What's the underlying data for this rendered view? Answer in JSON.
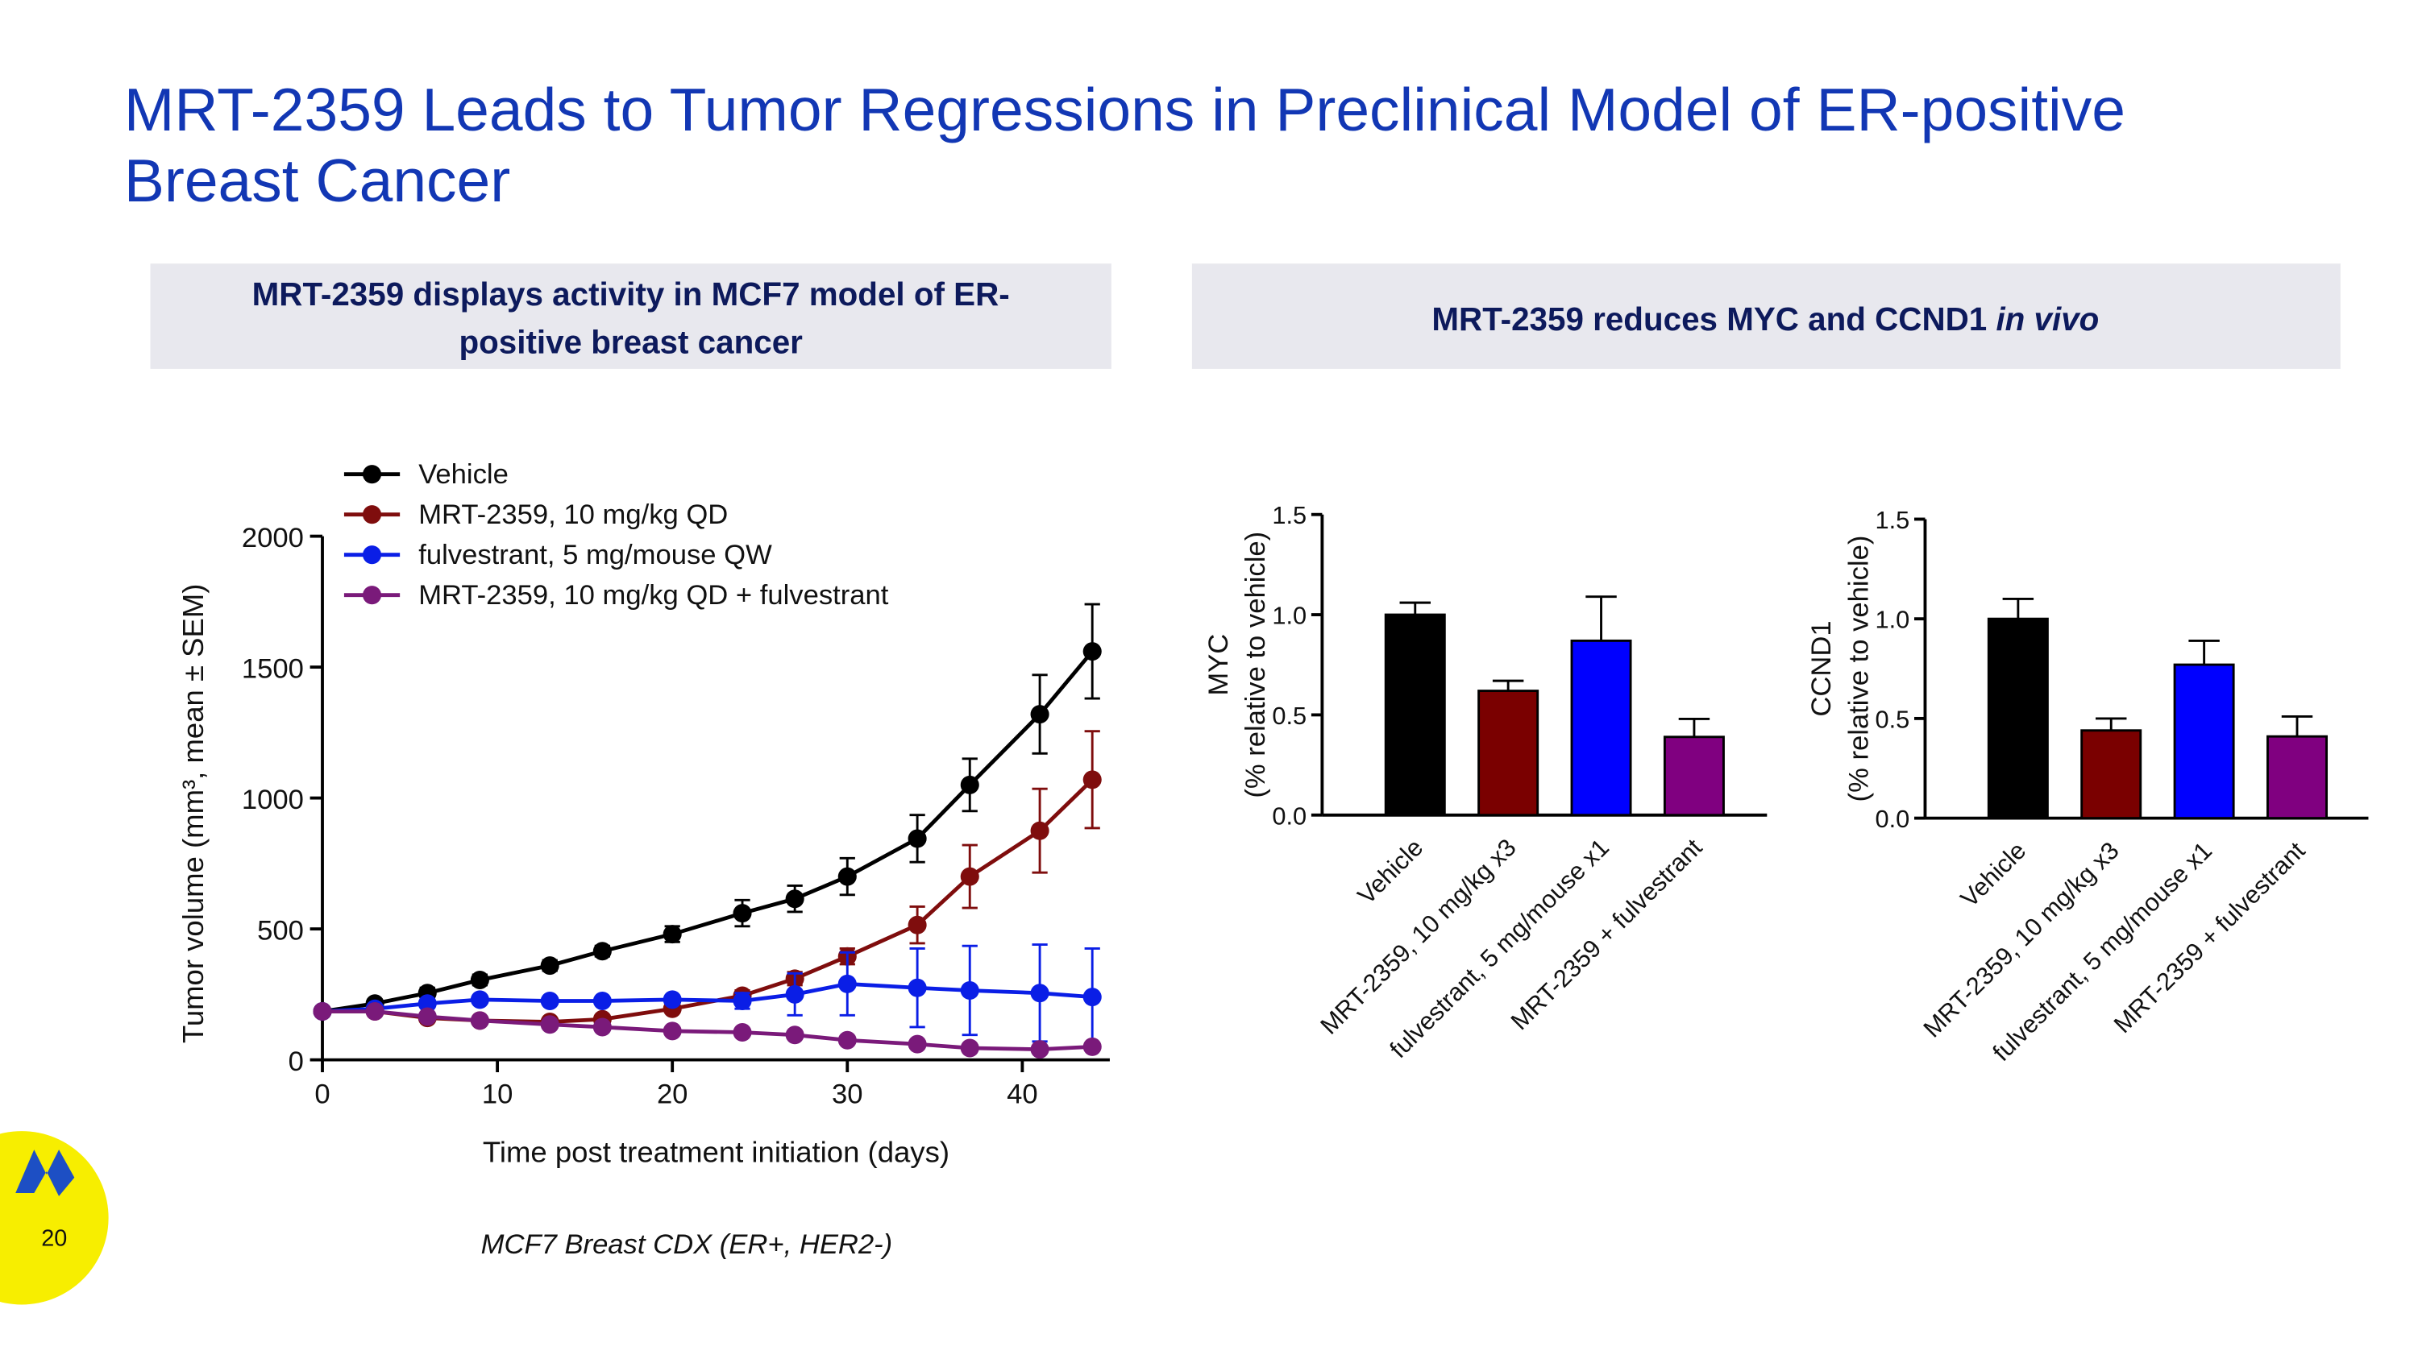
{
  "title": [
    "MRT-2359 Leads to Tumor Regressions in Preclinical Model of ER-positive",
    "Breast Cancer"
  ],
  "panels": [
    {
      "heading": [
        "MRT-2359 displays activity in MCF7 model of ER-",
        "positive breast cancer"
      ]
    },
    {
      "heading": [
        "MRT-2359 reduces MYC and CCND1",
        "in vivo"
      ]
    }
  ],
  "footnote": "MCF7 Breast CDX (ER+, HER2-)",
  "page_number": "20",
  "chart_data": [
    {
      "type": "line",
      "x_label": "Time post treatment initiation (days)",
      "y_label": "Tumor volume (mm³, mean ± SEM)",
      "x": [
        0,
        3,
        6,
        9,
        13,
        16,
        20,
        24,
        27,
        30,
        34,
        37,
        41,
        44
      ],
      "xlim": [
        0,
        45
      ],
      "xticks": [
        0,
        10,
        20,
        30,
        40
      ],
      "ylim": [
        0,
        2000
      ],
      "yticks": [
        0,
        500,
        1000,
        1500,
        2000
      ],
      "legend": "upper left",
      "series": [
        {
          "name": "Vehicle",
          "color": "#000000",
          "values": [
            185,
            215,
            255,
            305,
            360,
            415,
            480,
            560,
            615,
            700,
            845,
            1050,
            1320,
            1560
          ],
          "errors": [
            15,
            15,
            20,
            20,
            20,
            20,
            30,
            50,
            50,
            70,
            90,
            100,
            150,
            180
          ]
        },
        {
          "name": "MRT-2359, 10 mg/kg QD",
          "color": "#7f0d0d",
          "values": [
            185,
            185,
            160,
            150,
            145,
            155,
            195,
            245,
            310,
            395,
            515,
            700,
            875,
            1070
          ],
          "errors": [
            10,
            10,
            10,
            10,
            10,
            10,
            15,
            20,
            25,
            30,
            70,
            120,
            160,
            185
          ]
        },
        {
          "name": "fulvestrant, 5 mg/mouse QW",
          "color": "#0a1ee6",
          "values": [
            185,
            195,
            215,
            230,
            225,
            225,
            230,
            225,
            250,
            290,
            275,
            265,
            255,
            240
          ],
          "errors": [
            10,
            10,
            10,
            10,
            10,
            10,
            15,
            30,
            80,
            120,
            150,
            170,
            185,
            185
          ]
        },
        {
          "name": "MRT-2359, 10 mg/kg QD + fulvestrant",
          "color": "#7a1a7a",
          "values": [
            185,
            185,
            165,
            150,
            135,
            125,
            110,
            105,
            95,
            75,
            60,
            45,
            40,
            50
          ],
          "errors": [
            10,
            10,
            10,
            10,
            10,
            10,
            10,
            10,
            10,
            10,
            10,
            10,
            10,
            10
          ]
        }
      ]
    },
    {
      "type": "bar",
      "y_label": [
        "MYC",
        "(% relative to vehicle)"
      ],
      "categories": [
        "Vehicle",
        "MRT-2359, 10 mg/kg x3",
        "fulvestrant, 5 mg/mouse x1",
        "MRT-2359 + fulvestrant"
      ],
      "values": [
        1.0,
        0.62,
        0.87,
        0.39
      ],
      "errors": [
        0.06,
        0.05,
        0.22,
        0.09
      ],
      "colors": [
        "#000000",
        "#7a0000",
        "#0000ff",
        "#800080"
      ],
      "ylim": [
        0,
        1.5
      ],
      "yticks": [
        {
          "value": 0,
          "label": "0.0"
        },
        0.5,
        {
          "value": 1,
          "label": "1.0"
        },
        1.5
      ]
    },
    {
      "type": "bar",
      "y_label": [
        "CCND1",
        "(% relative to vehicle)"
      ],
      "categories": [
        "Vehicle",
        "MRT-2359, 10 mg/kg x3",
        "fulvestrant, 5 mg/mouse x1",
        "MRT-2359 + fulvestrant"
      ],
      "values": [
        1.0,
        0.44,
        0.77,
        0.41
      ],
      "errors": [
        0.1,
        0.06,
        0.12,
        0.1
      ],
      "colors": [
        "#000000",
        "#7a0000",
        "#0000ff",
        "#800080"
      ],
      "ylim": [
        0,
        1.5
      ],
      "yticks": [
        {
          "value": 0,
          "label": "0.0"
        },
        0.5,
        {
          "value": 1,
          "label": "1.0"
        },
        1.5
      ]
    }
  ]
}
